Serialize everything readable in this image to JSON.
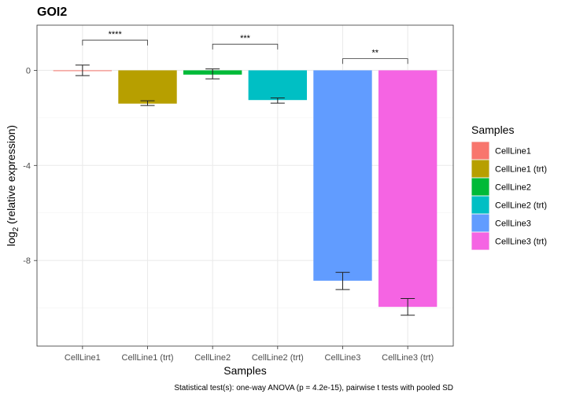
{
  "chart_data": {
    "type": "bar",
    "title": "GOI2",
    "xlabel": "Samples",
    "ylabel_main": "log",
    "ylabel_sub": "2",
    "ylabel_rest": " (relative expression)",
    "ylim": [
      -11.6,
      1.9
    ],
    "yticks": [
      0,
      -4,
      -8
    ],
    "ytick_labels": [
      "0",
      "-4",
      "-8"
    ],
    "categories": [
      "CellLine1",
      "CellLine1 (trt)",
      "CellLine2",
      "CellLine2 (trt)",
      "CellLine3",
      "CellLine3 (trt)"
    ],
    "values": [
      0,
      -1.4,
      -0.18,
      -1.25,
      -8.85,
      -9.95
    ],
    "error_low": [
      -0.22,
      -1.48,
      -0.36,
      -1.38,
      -9.22,
      -10.3
    ],
    "error_high": [
      0.22,
      -1.28,
      0.06,
      -1.16,
      -8.5,
      -9.6
    ],
    "colors": [
      "#F8766D",
      "#B79F00",
      "#00BA38",
      "#00BFC4",
      "#619CFF",
      "#F564E3"
    ],
    "significance": [
      {
        "from": 0,
        "to": 1,
        "y_bracket": 1.27,
        "y_tip": 1.05,
        "label": "****"
      },
      {
        "from": 2,
        "to": 3,
        "y_bracket": 1.1,
        "y_tip": 0.88,
        "label": "***"
      },
      {
        "from": 4,
        "to": 5,
        "y_bracket": 0.49,
        "y_tip": 0.27,
        "label": "**"
      }
    ],
    "legend": {
      "title": "Samples",
      "position": "right",
      "entries": [
        "CellLine1",
        "CellLine1 (trt)",
        "CellLine2",
        "CellLine2 (trt)",
        "CellLine3",
        "CellLine3 (trt)"
      ]
    },
    "grid": true,
    "caption": "Statistical test(s): one-way ANOVA (p = 4.2e-15), pairwise t tests with pooled SD"
  }
}
